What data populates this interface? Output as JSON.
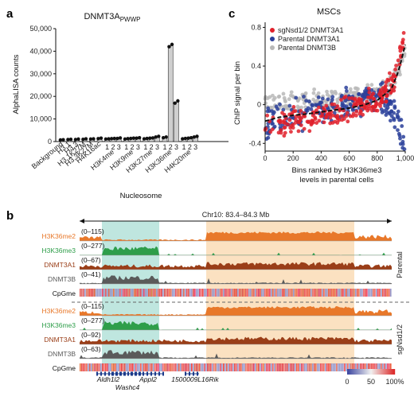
{
  "panels": {
    "a": "a",
    "b": "b",
    "c": "c"
  },
  "chart_data": [
    {
      "type": "bar",
      "title": "DNMT3A",
      "title_subscript": "PWWP",
      "ylabel": "AlphaLISA counts",
      "xlabel": "Nucleosome",
      "ylim": [
        0,
        50000
      ],
      "yticks": [
        "0",
        "10,000",
        "20,000",
        "30,000",
        "40,000",
        "50,000"
      ],
      "groups": [
        {
          "label": "Background",
          "ticks": [
            ""
          ],
          "values": [
            [
              700,
              800
            ]
          ]
        },
        {
          "label": "H3.1",
          "ticks": [
            ""
          ],
          "values": [
            [
              900,
              1000
            ]
          ]
        },
        {
          "label": "H3.3",
          "ticks": [
            ""
          ],
          "values": [
            [
              900,
              1100
            ]
          ]
        },
        {
          "label": "H3.1K27M",
          "ticks": [
            ""
          ],
          "values": [
            [
              1000,
              1200
            ]
          ]
        },
        {
          "label": "H3.3K27M",
          "ticks": [
            ""
          ],
          "values": [
            [
              1100,
              1200
            ]
          ]
        },
        {
          "label": "H4K16ac",
          "ticks": [
            ""
          ],
          "values": [
            [
              1300,
              1500
            ]
          ]
        },
        {
          "label": "H3K4me",
          "ticks": [
            "1",
            "2",
            "3"
          ],
          "values": [
            [
              1100,
              1200
            ],
            [
              1300,
              1400
            ],
            [
              1400,
              1600
            ]
          ]
        },
        {
          "label": "H3K9me",
          "ticks": [
            "1",
            "2",
            "3"
          ],
          "values": [
            [
              1100,
              1300
            ],
            [
              1400,
              1500
            ],
            [
              1500,
              1700
            ]
          ]
        },
        {
          "label": "H3K27me",
          "ticks": [
            "1",
            "2",
            "3"
          ],
          "values": [
            [
              1200,
              1400
            ],
            [
              1500,
              1600
            ],
            [
              2000,
              2300
            ]
          ]
        },
        {
          "label": "H3K36me",
          "ticks": [
            "1",
            "2",
            "3"
          ],
          "values": [
            [
              1700,
              2000
            ],
            [
              42000,
              43000
            ],
            [
              17000,
              18000
            ]
          ]
        },
        {
          "label": "H4K20me",
          "ticks": [
            "1",
            "2",
            "3"
          ],
          "values": [
            [
              1200,
              1400
            ],
            [
              1500,
              1700
            ],
            [
              2000,
              2300
            ]
          ]
        }
      ]
    },
    {
      "type": "scatter",
      "title": "MSCs",
      "xlabel_lines": [
        "Bins ranked by H3K36me3",
        "levels in parental cells"
      ],
      "ylabel": "ChIP signal per bin",
      "xlim": [
        0,
        1000
      ],
      "ylim": [
        -0.48,
        0.82
      ],
      "xticks": [
        0,
        200,
        400,
        600,
        800,
        1000
      ],
      "xtick_labels": [
        "0",
        "200",
        "400",
        "600",
        "800",
        "1,000"
      ],
      "yticks": [
        -0.4,
        0,
        0.4,
        0.8
      ],
      "ytick_labels": [
        "-0.4",
        "0",
        "0.4",
        "0.8"
      ],
      "legend": "top-left",
      "series": [
        {
          "name": "sgNsd1/2 DNMT3A1",
          "color": "#e0202a",
          "trend": [
            [
              0,
              -0.26
            ],
            [
              100,
              -0.2
            ],
            [
              200,
              -0.16
            ],
            [
              300,
              -0.14
            ],
            [
              400,
              -0.11
            ],
            [
              500,
              -0.08
            ],
            [
              600,
              -0.05
            ],
            [
              700,
              -0.01
            ],
            [
              800,
              0.05
            ],
            [
              900,
              0.2
            ],
            [
              950,
              0.4
            ],
            [
              1000,
              0.72
            ]
          ],
          "spread": 0.1
        },
        {
          "name": "Parental DNMT3A1",
          "color": "#2a3f9a",
          "trend": [
            [
              0,
              -0.22
            ],
            [
              100,
              -0.14
            ],
            [
              200,
              -0.1
            ],
            [
              300,
              -0.08
            ],
            [
              400,
              -0.06
            ],
            [
              500,
              -0.03
            ],
            [
              600,
              0.02
            ],
            [
              700,
              0.06
            ],
            [
              800,
              0.08
            ],
            [
              870,
              0.05
            ],
            [
              930,
              -0.1
            ],
            [
              1000,
              -0.42
            ]
          ],
          "spread": 0.12
        },
        {
          "name": "Parental DNMT3B",
          "color": "#b8b8b8",
          "trend": [
            [
              0,
              0
            ],
            [
              100,
              0.02
            ],
            [
              200,
              0.02
            ],
            [
              300,
              0.03
            ],
            [
              400,
              0.04
            ],
            [
              500,
              0.05
            ],
            [
              600,
              0.06
            ],
            [
              700,
              0.08
            ],
            [
              800,
              0.12
            ],
            [
              900,
              0.2
            ],
            [
              950,
              0.35
            ],
            [
              1000,
              0.6
            ]
          ],
          "spread": 0.08
        }
      ]
    },
    {
      "type": "area",
      "region_label": "Chr10: 83.4–84.3 Mb",
      "row_groups": [
        {
          "label": "Parental",
          "rows": [
            {
              "name": "H3K36me2",
              "range": "(0–115)",
              "color": "#e8782a"
            },
            {
              "name": "H3K36me3",
              "range": "(0–277)",
              "color": "#2e9e4a"
            },
            {
              "name": "DNMT3A1",
              "range": "(0–67)",
              "color": "#9a3e18"
            },
            {
              "name": "DNMT3B",
              "range": "(0–41)",
              "color": "#5a5a5a"
            },
            {
              "name": "CpGme",
              "range": "",
              "color": "heatmap"
            }
          ]
        },
        {
          "label": "sgNsd1/2",
          "rows": [
            {
              "name": "H3K36me2",
              "range": "(0–115)",
              "color": "#e8782a"
            },
            {
              "name": "H3K36me3",
              "range": "(0–277)",
              "color": "#2e9e4a"
            },
            {
              "name": "DNMT3A1",
              "range": "(0–92)",
              "color": "#9a3e18"
            },
            {
              "name": "DNMT3B",
              "range": "(0–63)",
              "color": "#5a5a5a"
            },
            {
              "name": "CpGme",
              "range": "",
              "color": "heatmap"
            }
          ]
        }
      ],
      "highlight_colors": {
        "teal": "#bfe6df",
        "peach": "#fbe1c1"
      },
      "genes": [
        "Aldh1l2",
        "Appl2",
        "Washc4",
        "1500009L16Rik"
      ],
      "colorbar_ticks": [
        "0",
        "50",
        "100%"
      ]
    }
  ]
}
